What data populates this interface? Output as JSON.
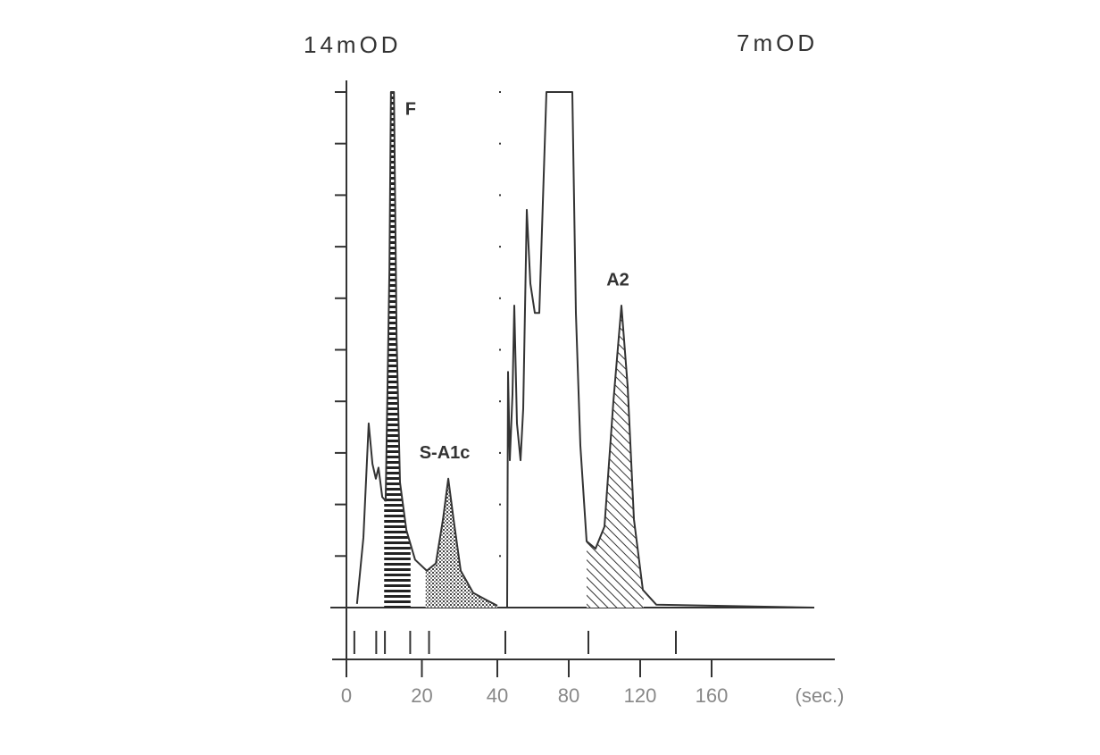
{
  "chart_data": [
    {
      "type": "line",
      "y_label": "14mOD",
      "xlim": [
        0,
        40
      ],
      "ylim": [
        0,
        14
      ],
      "xticks": [
        0,
        20,
        40
      ],
      "yticks": [
        0,
        1.4,
        2.8,
        4.2,
        5.6,
        7,
        8.4,
        9.8,
        11.2,
        12.6,
        14
      ],
      "x": [
        2.8,
        4.5,
        5.9,
        6.9,
        7.8,
        8.5,
        9.5,
        10.4,
        11.4,
        11.8,
        12.6,
        13.3,
        14.2,
        15.9,
        18.2,
        21.3,
        23.7,
        25.6,
        27.0,
        28.4,
        30.3,
        33.6,
        37.2,
        40
      ],
      "values": [
        0.1,
        1.9,
        5.0,
        3.9,
        3.5,
        3.8,
        3.0,
        2.9,
        9.2,
        14,
        14,
        7.3,
        3.4,
        2.1,
        1.3,
        1.0,
        1.2,
        2.4,
        3.5,
        2.4,
        1.0,
        0.4,
        0.2,
        0.05
      ],
      "color": "#333333",
      "peaks": [
        {
          "label": "F",
          "range": [
            10,
            17
          ],
          "hatch": "horizontal"
        },
        {
          "label": "S-A1c",
          "range": [
            21,
            40
          ],
          "hatch": "dots"
        }
      ],
      "markers": [
        2.1,
        7.9,
        10.2,
        16.9,
        21.9
      ]
    },
    {
      "type": "line",
      "y_label": "7mOD",
      "x_label": "(sec.)",
      "xlim": [
        40,
        229
      ],
      "ylim": [
        0,
        7
      ],
      "xticks": [
        80,
        120,
        160
      ],
      "yticks": [
        0,
        0.7,
        1.4,
        2.1,
        2.8,
        3.5,
        4.2,
        4.9,
        5.6,
        6.3,
        7
      ],
      "x": [
        45.5,
        46,
        47,
        48.5,
        49.5,
        51,
        53,
        54.5,
        56.5,
        58.5,
        61,
        63.5,
        67.5,
        82,
        84,
        86.5,
        90,
        95,
        100,
        105,
        109.5,
        113,
        116.5,
        121.5,
        129,
        217.5
      ],
      "values": [
        0,
        3.2,
        2.0,
        2.9,
        4.1,
        2.5,
        2.0,
        2.7,
        5.4,
        4.4,
        4.0,
        4.0,
        7,
        7,
        4.0,
        2.2,
        0.9,
        0.8,
        1.1,
        2.8,
        4.1,
        3.0,
        1.2,
        0.24,
        0.04,
        0
      ],
      "color": "#333333",
      "peaks": [
        {
          "label": "A2",
          "range": [
            90,
            122
          ],
          "hatch": "diagonal"
        }
      ],
      "markers": [
        44.5,
        91,
        140
      ]
    }
  ]
}
